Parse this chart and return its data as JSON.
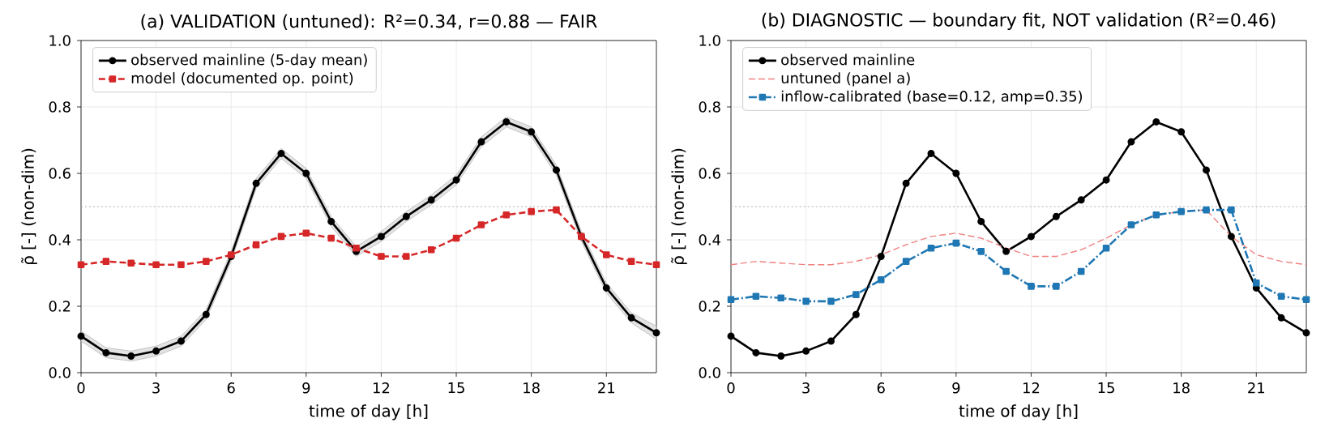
{
  "chart_data": [
    {
      "type": "line",
      "title": "(a) VALIDATION (untuned): R²=0.34, r=0.88 — FAIR",
      "xlabel": "time of day [h]",
      "ylabel": "ρ̃ [-] (non-dim)",
      "x": [
        0,
        1,
        2,
        3,
        4,
        5,
        6,
        7,
        8,
        9,
        10,
        11,
        12,
        13,
        14,
        15,
        16,
        17,
        18,
        19,
        20,
        21,
        22,
        23
      ],
      "series": [
        {
          "name": "observed mainline (5-day mean)",
          "color": "#000000",
          "marker": "circle",
          "line_style": "solid",
          "values": [
            0.11,
            0.06,
            0.05,
            0.065,
            0.095,
            0.175,
            0.35,
            0.57,
            0.66,
            0.6,
            0.455,
            0.365,
            0.41,
            0.47,
            0.52,
            0.58,
            0.695,
            0.755,
            0.725,
            0.61,
            0.41,
            0.255,
            0.165,
            0.12
          ],
          "lower": [
            0.095,
            0.045,
            0.035,
            0.05,
            0.08,
            0.16,
            0.335,
            0.555,
            0.645,
            0.585,
            0.44,
            0.35,
            0.395,
            0.455,
            0.505,
            0.565,
            0.68,
            0.74,
            0.71,
            0.595,
            0.395,
            0.24,
            0.15,
            0.1
          ],
          "upper": [
            0.125,
            0.075,
            0.065,
            0.08,
            0.11,
            0.19,
            0.365,
            0.585,
            0.675,
            0.615,
            0.47,
            0.38,
            0.425,
            0.485,
            0.535,
            0.595,
            0.71,
            0.77,
            0.74,
            0.625,
            0.425,
            0.27,
            0.18,
            0.14
          ]
        },
        {
          "name": "model (documented op. point)",
          "color": "#d62728",
          "marker": "square",
          "line_style": "dashed",
          "values": [
            0.325,
            0.335,
            0.33,
            0.325,
            0.325,
            0.335,
            0.355,
            0.385,
            0.41,
            0.42,
            0.405,
            0.375,
            0.35,
            0.35,
            0.37,
            0.405,
            0.445,
            0.475,
            0.485,
            0.49,
            0.41,
            0.355,
            0.335,
            0.325
          ]
        }
      ],
      "ref_lines": [
        {
          "axis": "y",
          "value": 0.5,
          "color": "#b0b0b0",
          "line_style": "dotted"
        }
      ],
      "xlim": [
        0,
        23
      ],
      "xticks": [
        0,
        3,
        6,
        9,
        12,
        15,
        18,
        21
      ],
      "ylim": [
        0,
        1
      ],
      "yticks": [
        {
          "value": 0,
          "label": "0.0"
        },
        {
          "value": 0.2,
          "label": "0.2"
        },
        {
          "value": 0.4,
          "label": "0.4"
        },
        {
          "value": 0.6,
          "label": "0.6"
        },
        {
          "value": 0.8,
          "label": "0.8"
        },
        {
          "value": 1,
          "label": "1.0"
        }
      ],
      "grid": true,
      "legend": "top left"
    },
    {
      "type": "line",
      "title": "(b) DIAGNOSTIC — boundary fit, NOT validation (R²=0.46)",
      "xlabel": "time of day [h]",
      "ylabel": "ρ̃ [-] (non-dim)",
      "x": [
        0,
        1,
        2,
        3,
        4,
        5,
        6,
        7,
        8,
        9,
        10,
        11,
        12,
        13,
        14,
        15,
        16,
        17,
        18,
        19,
        20,
        21,
        22,
        23
      ],
      "series": [
        {
          "name": "observed mainline",
          "color": "#000000",
          "marker": "circle",
          "line_style": "solid",
          "values": [
            0.11,
            0.06,
            0.05,
            0.065,
            0.095,
            0.175,
            0.35,
            0.57,
            0.66,
            0.6,
            0.455,
            0.365,
            0.41,
            0.47,
            0.52,
            0.58,
            0.695,
            0.755,
            0.725,
            0.61,
            0.41,
            0.255,
            0.165,
            0.12
          ]
        },
        {
          "name": "untuned (panel a)",
          "color": "#f08080",
          "marker": "none",
          "line_style": "dashed",
          "values": [
            0.325,
            0.335,
            0.33,
            0.325,
            0.325,
            0.335,
            0.355,
            0.385,
            0.41,
            0.42,
            0.405,
            0.375,
            0.35,
            0.35,
            0.37,
            0.405,
            0.445,
            0.475,
            0.485,
            0.49,
            0.41,
            0.355,
            0.335,
            0.325
          ]
        },
        {
          "name": "inflow-calibrated (base=0.12, amp=0.35)",
          "color": "#1f77b4",
          "marker": "square",
          "line_style": "dashdot",
          "values": [
            0.22,
            0.23,
            0.225,
            0.215,
            0.215,
            0.235,
            0.28,
            0.335,
            0.375,
            0.39,
            0.365,
            0.305,
            0.26,
            0.26,
            0.305,
            0.375,
            0.445,
            0.475,
            0.485,
            0.49,
            0.49,
            0.27,
            0.23,
            0.22
          ]
        }
      ],
      "ref_lines": [
        {
          "axis": "y",
          "value": 0.5,
          "color": "#b0b0b0",
          "line_style": "dotted"
        }
      ],
      "xlim": [
        0,
        23
      ],
      "xticks": [
        0,
        3,
        6,
        9,
        12,
        15,
        18,
        21
      ],
      "ylim": [
        0,
        1
      ],
      "yticks": [
        {
          "value": 0,
          "label": "0.0"
        },
        {
          "value": 0.2,
          "label": "0.2"
        },
        {
          "value": 0.4,
          "label": "0.4"
        },
        {
          "value": 0.6,
          "label": "0.6"
        },
        {
          "value": 0.8,
          "label": "0.8"
        },
        {
          "value": 1,
          "label": "1.0"
        }
      ],
      "grid": true,
      "legend": "top left"
    }
  ]
}
